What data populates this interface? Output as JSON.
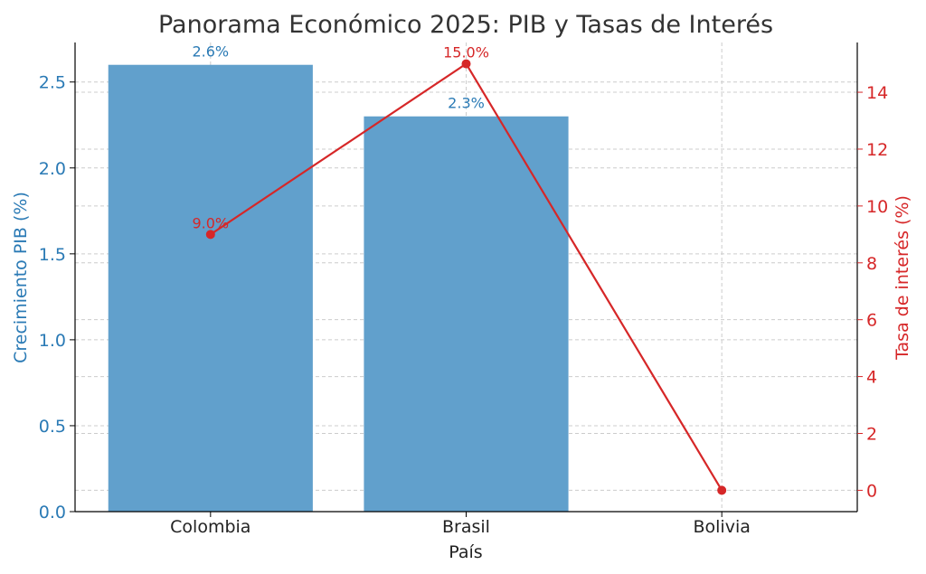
{
  "chart_data": {
    "type": "bar+line",
    "title": "Panorama Económico 2025: PIB y Tasas de Interés",
    "xlabel": "País",
    "categories": [
      "Colombia",
      "Brasil",
      "Bolivia"
    ],
    "bars": {
      "ylabel": "Crecimiento PIB (%)",
      "values": [
        2.6,
        2.3,
        null
      ],
      "labels": [
        "2.6%",
        "2.3%",
        ""
      ],
      "ylim": [
        0,
        2.73
      ],
      "yticks": [
        0.0,
        0.5,
        1.0,
        1.5,
        2.0,
        2.5
      ],
      "ytick_labels": [
        "0.0",
        "0.5",
        "1.0",
        "1.5",
        "2.0",
        "2.5"
      ],
      "color": "#61a0cc",
      "axis_color": "#2a7ab5"
    },
    "line": {
      "ylabel": "Tasa de interés (%)",
      "values": [
        9.0,
        15.0,
        0.0
      ],
      "labels": [
        "9.0%",
        "15.0%",
        ""
      ],
      "ylim": [
        -0.75,
        15.75
      ],
      "yticks": [
        0,
        2,
        4,
        6,
        8,
        10,
        12,
        14
      ],
      "ytick_labels": [
        "0",
        "2",
        "4",
        "6",
        "8",
        "10",
        "12",
        "14"
      ],
      "color": "#d62728"
    },
    "grid": true
  }
}
